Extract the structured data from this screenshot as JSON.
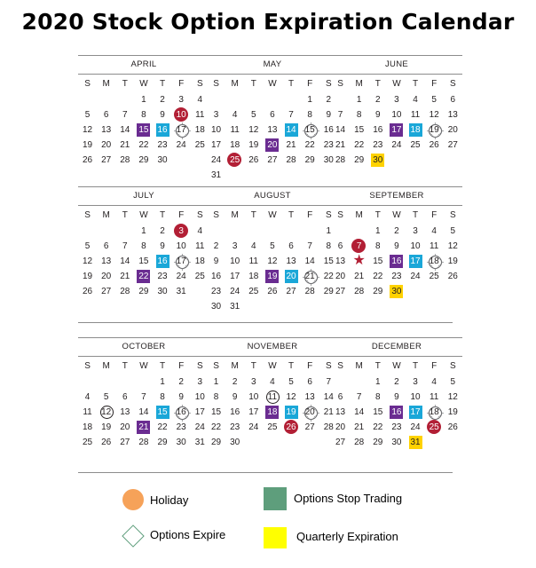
{
  "title": "2020 Stock Option Expiration Calendar",
  "weekdays": [
    "S",
    "M",
    "T",
    "W",
    "T",
    "F",
    "S"
  ],
  "colors": {
    "holiday": "#b21f35",
    "options_expire_blue": "#1aa7d8",
    "options_stop_purple": "#6a2c91",
    "quarterly": "#ffd200"
  },
  "months": [
    {
      "name": "APRIL",
      "weeks": [
        [
          "",
          "",
          "",
          "1",
          "2",
          "3",
          "4"
        ],
        [
          "5",
          "6",
          "7",
          "8",
          "9",
          "10",
          "11"
        ],
        [
          "12",
          "13",
          "14",
          "15",
          "16",
          "17",
          "18"
        ],
        [
          "19",
          "20",
          "21",
          "22",
          "23",
          "24",
          "25"
        ],
        [
          "26",
          "27",
          "28",
          "29",
          "30",
          "",
          ""
        ]
      ],
      "marks": {
        "10": "holiday",
        "15": "opt-purple",
        "16": "opt-blue",
        "17": "expire"
      }
    },
    {
      "name": "MAY",
      "weeks": [
        [
          "",
          "",
          "",
          "",
          "",
          "1",
          "2"
        ],
        [
          "3",
          "4",
          "5",
          "6",
          "7",
          "8",
          "9"
        ],
        [
          "10",
          "11",
          "12",
          "13",
          "14",
          "15",
          "16"
        ],
        [
          "17",
          "18",
          "19",
          "20",
          "21",
          "22",
          "23"
        ],
        [
          "24",
          "25",
          "26",
          "27",
          "28",
          "29",
          "30"
        ],
        [
          "31",
          "",
          "",
          "",
          "",
          "",
          ""
        ]
      ],
      "marks": {
        "14": "opt-blue",
        "15": "expire",
        "20": "opt-purple",
        "25": "holiday"
      }
    },
    {
      "name": "JUNE",
      "weeks": [
        [
          "",
          "1",
          "2",
          "3",
          "4",
          "5",
          "6"
        ],
        [
          "7",
          "8",
          "9",
          "10",
          "11",
          "12",
          "13"
        ],
        [
          "14",
          "15",
          "16",
          "17",
          "18",
          "19",
          "20"
        ],
        [
          "21",
          "22",
          "23",
          "24",
          "25",
          "26",
          "27"
        ],
        [
          "28",
          "29",
          "30",
          "",
          "",
          "",
          ""
        ]
      ],
      "marks": {
        "17": "opt-purple",
        "18": "opt-blue",
        "19": "expire",
        "30": "quarterly"
      }
    },
    {
      "name": "JULY",
      "weeks": [
        [
          "",
          "",
          "",
          "1",
          "2",
          "3",
          "4"
        ],
        [
          "5",
          "6",
          "7",
          "8",
          "9",
          "10",
          "11"
        ],
        [
          "12",
          "13",
          "14",
          "15",
          "16",
          "17",
          "18"
        ],
        [
          "19",
          "20",
          "21",
          "22",
          "23",
          "24",
          "25"
        ],
        [
          "26",
          "27",
          "28",
          "29",
          "30",
          "31",
          ""
        ]
      ],
      "marks": {
        "3": "holiday",
        "16": "opt-blue",
        "17": "expire",
        "22": "opt-purple"
      }
    },
    {
      "name": "AUGUST",
      "weeks": [
        [
          "",
          "",
          "",
          "",
          "",
          "",
          "1"
        ],
        [
          "2",
          "3",
          "4",
          "5",
          "6",
          "7",
          "8"
        ],
        [
          "9",
          "10",
          "11",
          "12",
          "13",
          "14",
          "15"
        ],
        [
          "16",
          "17",
          "18",
          "19",
          "20",
          "21",
          "22"
        ],
        [
          "23",
          "24",
          "25",
          "26",
          "27",
          "28",
          "29"
        ],
        [
          "30",
          "31",
          "",
          "",
          "",
          "",
          ""
        ]
      ],
      "marks": {
        "19": "opt-purple",
        "20": "opt-blue",
        "21": "expire"
      }
    },
    {
      "name": "SEPTEMBER",
      "weeks": [
        [
          "",
          "",
          "1",
          "2",
          "3",
          "4",
          "5"
        ],
        [
          "6",
          "7",
          "8",
          "9",
          "10",
          "11",
          "12"
        ],
        [
          "13",
          "14",
          "15",
          "16",
          "17",
          "18",
          "19"
        ],
        [
          "20",
          "21",
          "22",
          "23",
          "24",
          "25",
          "26"
        ],
        [
          "27",
          "28",
          "29",
          "30",
          "",
          "",
          ""
        ]
      ],
      "marks": {
        "7": "holiday",
        "14": "star",
        "16": "opt-purple",
        "17": "opt-blue",
        "18": "expire",
        "30": "quarterly"
      }
    },
    {
      "name": "OCTOBER",
      "weeks": [
        [
          "",
          "",
          "",
          "",
          "1",
          "2",
          "3"
        ],
        [
          "4",
          "5",
          "6",
          "7",
          "8",
          "9",
          "10"
        ],
        [
          "11",
          "12",
          "13",
          "14",
          "15",
          "16",
          "17"
        ],
        [
          "18",
          "19",
          "20",
          "21",
          "22",
          "23",
          "24"
        ],
        [
          "25",
          "26",
          "27",
          "28",
          "29",
          "30",
          "31"
        ]
      ],
      "marks": {
        "12": "ring",
        "15": "opt-blue",
        "16": "expire",
        "21": "opt-purple"
      }
    },
    {
      "name": "NOVEMBER",
      "weeks": [
        [
          "1",
          "2",
          "3",
          "4",
          "5",
          "6",
          "7"
        ],
        [
          "8",
          "9",
          "10",
          "11",
          "12",
          "13",
          "14"
        ],
        [
          "15",
          "16",
          "17",
          "18",
          "19",
          "20",
          "21"
        ],
        [
          "22",
          "23",
          "24",
          "25",
          "26",
          "27",
          "28"
        ],
        [
          "29",
          "30",
          "",
          "",
          "",
          "",
          ""
        ]
      ],
      "marks": {
        "11": "ring",
        "18": "opt-purple",
        "19": "opt-blue",
        "20": "expire",
        "26": "holiday"
      }
    },
    {
      "name": "DECEMBER",
      "weeks": [
        [
          "",
          "",
          "1",
          "2",
          "3",
          "4",
          "5"
        ],
        [
          "6",
          "7",
          "8",
          "9",
          "10",
          "11",
          "12"
        ],
        [
          "13",
          "14",
          "15",
          "16",
          "17",
          "18",
          "19"
        ],
        [
          "20",
          "21",
          "22",
          "23",
          "24",
          "25",
          "26"
        ],
        [
          "27",
          "28",
          "29",
          "30",
          "31",
          "",
          ""
        ]
      ],
      "marks": {
        "16": "opt-purple",
        "17": "opt-blue",
        "18": "expire",
        "25": "holiday",
        "31": "quarterly"
      }
    }
  ],
  "legend": {
    "holiday": "Holiday",
    "stop_trading": "Options Stop Trading",
    "expire": "Options Expire",
    "quarterly": "Quarterly Expiration"
  }
}
